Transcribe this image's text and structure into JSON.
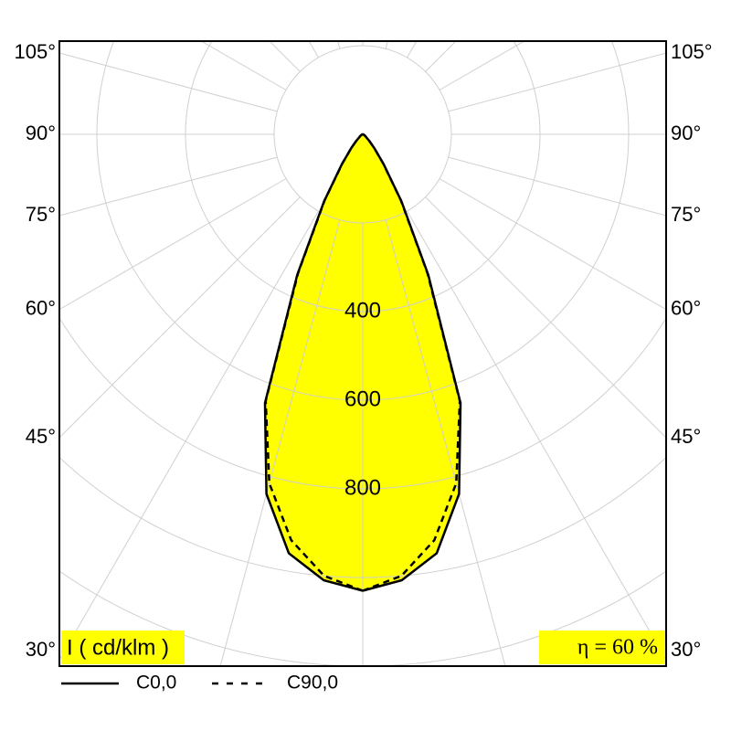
{
  "chart_data": {
    "type": "polar",
    "angle_unit_label": "I ( cd/klm )",
    "annotation": "η = 60 %",
    "x": [
      0,
      5,
      10,
      15,
      20,
      25,
      30,
      35,
      40,
      45,
      50,
      55,
      60,
      65,
      70,
      75,
      80,
      85,
      90
    ],
    "series": [
      {
        "name": "C0,0",
        "color": "#000000",
        "dash": "solid",
        "fill": "#ffff00",
        "values": [
          1030,
          1010,
          960,
          840,
          645,
          350,
          175,
          82,
          40,
          20,
          10,
          7,
          5,
          3,
          2,
          1,
          0,
          0,
          0
        ]
      },
      {
        "name": "C90,0",
        "color": "#000000",
        "dash": "dashed",
        "values": [
          1030,
          1000,
          930,
          815,
          640,
          345,
          172,
          80,
          40,
          20,
          10,
          7,
          5,
          3,
          2,
          1,
          0,
          0,
          0
        ]
      }
    ],
    "rlim": [
      0,
      1400
    ],
    "rticks": [
      400,
      600,
      800
    ],
    "angleticks": [
      {
        "value": 30,
        "label": "30°"
      },
      {
        "value": 45,
        "label": "45°"
      },
      {
        "value": 60,
        "label": "60°"
      },
      {
        "value": 75,
        "label": "75°"
      },
      {
        "value": 90,
        "label": "90°"
      },
      {
        "value": 105,
        "label": "105°"
      }
    ],
    "grid": true
  }
}
